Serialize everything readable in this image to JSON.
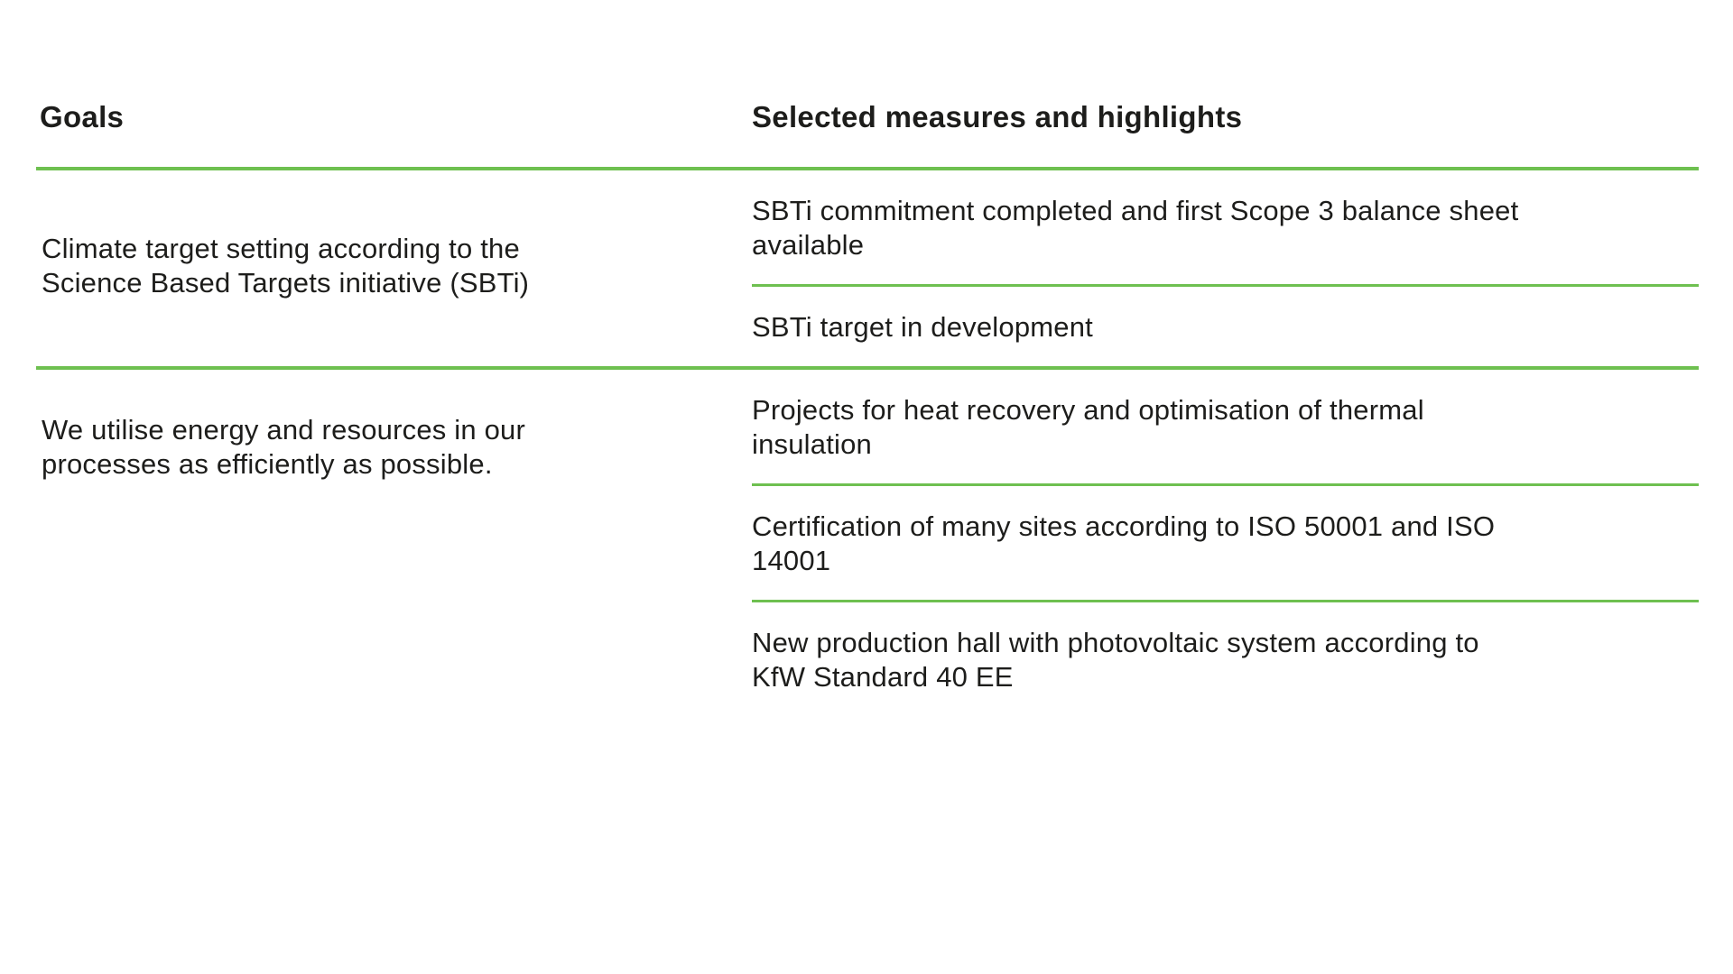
{
  "colors": {
    "accent_green": "#6EC050",
    "text": "#1D1D1B",
    "background": "#FFFFFF"
  },
  "table": {
    "headers": {
      "goals": "Goals",
      "measures": "Selected measures and highlights"
    },
    "rows": [
      {
        "goal": "Climate target setting according to the\nScience Based Targets initiative (SBTi)",
        "measures": [
          "SBTi commitment completed and first Scope 3 balance sheet\navailable",
          "SBTi target in development"
        ]
      },
      {
        "goal": "We utilise energy and resources in our\nprocesses as efficiently as possible.",
        "measures": [
          "Projects for heat recovery and optimisation of thermal\ninsulation",
          "Certification of many sites according to ISO 50001 and ISO\n14001",
          "New production hall with photovoltaic system according to\nKfW Standard 40 EE"
        ]
      }
    ]
  }
}
